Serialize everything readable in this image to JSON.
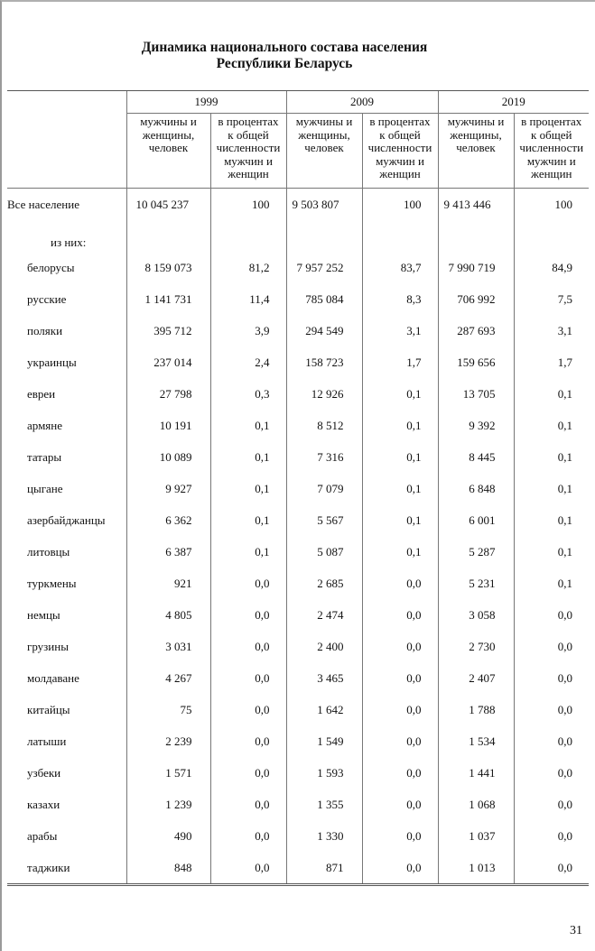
{
  "title_line1": "Динамика национального состава населения",
  "title_line2": "Республики Беларусь",
  "years": [
    "1999",
    "2009",
    "2019"
  ],
  "subheaders": {
    "count": [
      "мужчины и",
      "женщины,",
      "человек"
    ],
    "percent": [
      "в процентах",
      "к общей",
      "численности",
      "мужчин и",
      "женщин"
    ]
  },
  "total": {
    "label": "Все население",
    "values": [
      "10 045 237",
      "100",
      "9 503 807",
      "100",
      "9 413 446",
      "100"
    ]
  },
  "note": "из них:",
  "rows": [
    {
      "label": "белорусы",
      "values": [
        "8 159 073",
        "81,2",
        "7 957 252",
        "83,7",
        "7 990 719",
        "84,9"
      ]
    },
    {
      "label": "русские",
      "values": [
        "1 141 731",
        "11,4",
        "785 084",
        "8,3",
        "706 992",
        "7,5"
      ]
    },
    {
      "label": "поляки",
      "values": [
        "395 712",
        "3,9",
        "294 549",
        "3,1",
        "287 693",
        "3,1"
      ]
    },
    {
      "label": "украинцы",
      "values": [
        "237 014",
        "2,4",
        "158 723",
        "1,7",
        "159 656",
        "1,7"
      ]
    },
    {
      "label": "евреи",
      "values": [
        "27 798",
        "0,3",
        "12 926",
        "0,1",
        "13 705",
        "0,1"
      ]
    },
    {
      "label": "армяне",
      "values": [
        "10 191",
        "0,1",
        "8 512",
        "0,1",
        "9 392",
        "0,1"
      ]
    },
    {
      "label": "татары",
      "values": [
        "10 089",
        "0,1",
        "7 316",
        "0,1",
        "8 445",
        "0,1"
      ]
    },
    {
      "label": "цыгане",
      "values": [
        "9 927",
        "0,1",
        "7 079",
        "0,1",
        "6 848",
        "0,1"
      ]
    },
    {
      "label": "азербайджанцы",
      "values": [
        "6 362",
        "0,1",
        "5 567",
        "0,1",
        "6 001",
        "0,1"
      ]
    },
    {
      "label": "литовцы",
      "values": [
        "6 387",
        "0,1",
        "5 087",
        "0,1",
        "5 287",
        "0,1"
      ]
    },
    {
      "label": "туркмены",
      "values": [
        "921",
        "0,0",
        "2 685",
        "0,0",
        "5 231",
        "0,1"
      ]
    },
    {
      "label": "немцы",
      "values": [
        "4 805",
        "0,0",
        "2 474",
        "0,0",
        "3 058",
        "0,0"
      ]
    },
    {
      "label": "грузины",
      "values": [
        "3 031",
        "0,0",
        "2 400",
        "0,0",
        "2 730",
        "0,0"
      ]
    },
    {
      "label": "молдаване",
      "values": [
        "4 267",
        "0,0",
        "3 465",
        "0,0",
        "2 407",
        "0,0"
      ]
    },
    {
      "label": "китайцы",
      "values": [
        "75",
        "0,0",
        "1 642",
        "0,0",
        "1 788",
        "0,0"
      ]
    },
    {
      "label": "латыши",
      "values": [
        "2 239",
        "0,0",
        "1 549",
        "0,0",
        "1 534",
        "0,0"
      ]
    },
    {
      "label": "узбеки",
      "values": [
        "1 571",
        "0,0",
        "1 593",
        "0,0",
        "1 441",
        "0,0"
      ]
    },
    {
      "label": "казахи",
      "values": [
        "1 239",
        "0,0",
        "1 355",
        "0,0",
        "1 068",
        "0,0"
      ]
    },
    {
      "label": "арабы",
      "values": [
        "490",
        "0,0",
        "1 330",
        "0,0",
        "1 037",
        "0,0"
      ]
    },
    {
      "label": "таджики",
      "values": [
        "848",
        "0,0",
        "871",
        "0,0",
        "1 013",
        "0,0"
      ]
    }
  ],
  "page_number": "31"
}
